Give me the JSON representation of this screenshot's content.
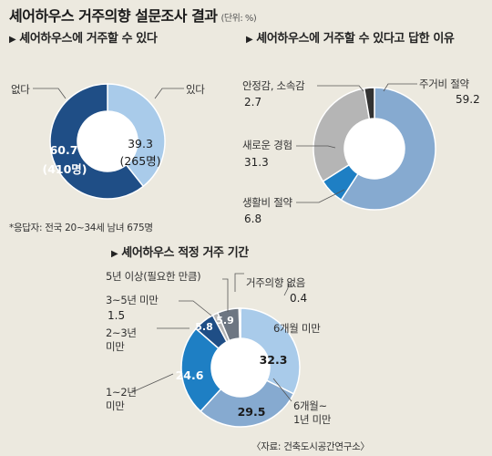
{
  "title": "셰어하우스 거주의향 설문조사 결과",
  "unit": "(단위: %)",
  "triangle": "▶",
  "respondents_note": "*응답자: 전국 20~34세 남녀 675명",
  "source": "〈자료: 건축도시공간연구소〉",
  "colors": {
    "background": "#ece9df",
    "dark_blue": "#1f4e86",
    "mid_blue": "#1e7fc4",
    "light_blue": "#a9cbea",
    "steel_blue": "#86aad0",
    "gray": "#b5b5b5",
    "charcoal": "#333333",
    "slate": "#6d7682"
  },
  "chart_data": [
    {
      "type": "pie",
      "title": "셰어하우스에 거주할 수 있다",
      "series": [
        {
          "name": "있다",
          "value": 39.3,
          "count": "(265명)",
          "color": "#a9cbea"
        },
        {
          "name": "없다",
          "value": 60.7,
          "count": "(410명)",
          "color": "#1f4e86"
        }
      ]
    },
    {
      "type": "pie",
      "title": "셰어하우스에 거주할 수 있다고 답한 이유",
      "series": [
        {
          "name": "주거비 절약",
          "value": 59.2,
          "color": "#86aad0"
        },
        {
          "name": "생활비 절약",
          "value": 6.8,
          "color": "#1e7fc4"
        },
        {
          "name": "새로운 경험",
          "value": 31.3,
          "color": "#b5b5b5"
        },
        {
          "name": "안정감, 소속감",
          "value": 2.7,
          "color": "#333333"
        }
      ]
    },
    {
      "type": "pie",
      "title": "셰어하우스 적정 거주 기간",
      "series": [
        {
          "name": "6개월 미만",
          "value": 32.3,
          "color": "#a9cbea"
        },
        {
          "name": "6개월~\n1년 미만",
          "value": 29.5,
          "color": "#86aad0"
        },
        {
          "name": "1~2년\n미만",
          "value": 24.6,
          "color": "#1e7fc4"
        },
        {
          "name": "2~3년\n미만",
          "value": 5.8,
          "color": "#1f4e86"
        },
        {
          "name": "3~5년 미만",
          "value": 1.5,
          "color": "#b5b5b5"
        },
        {
          "name": "5년 이상(필요한 만큼)",
          "value": 5.9,
          "color": "#6d7682"
        },
        {
          "name": "거주의향 없음",
          "value": 0.4,
          "color": "#333333"
        }
      ]
    }
  ]
}
